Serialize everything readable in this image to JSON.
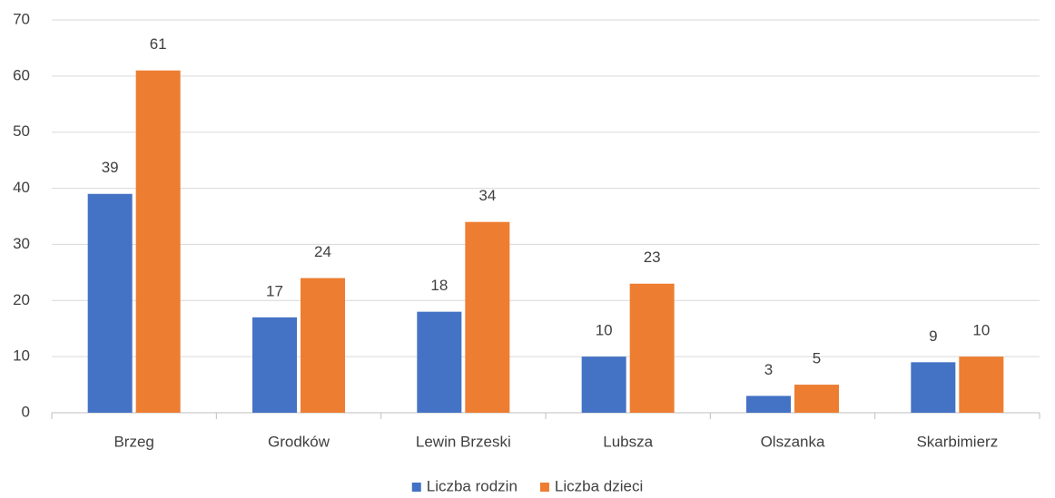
{
  "chart_data": {
    "type": "bar",
    "categories": [
      "Brzeg",
      "Grodków",
      "Lewin Brzeski",
      "Lubsza",
      "Olszanka",
      "Skarbimierz"
    ],
    "series": [
      {
        "name": "Liczba rodzin",
        "color": "#4472c4",
        "values": [
          39,
          17,
          18,
          10,
          3,
          9
        ]
      },
      {
        "name": "Liczba dzieci",
        "color": "#ed7d31",
        "values": [
          61,
          24,
          34,
          23,
          5,
          10
        ]
      }
    ],
    "ylim": [
      0,
      70
    ],
    "yticks": [
      0,
      10,
      20,
      30,
      40,
      50,
      60,
      70
    ],
    "grid": true,
    "legend": "bottom"
  }
}
